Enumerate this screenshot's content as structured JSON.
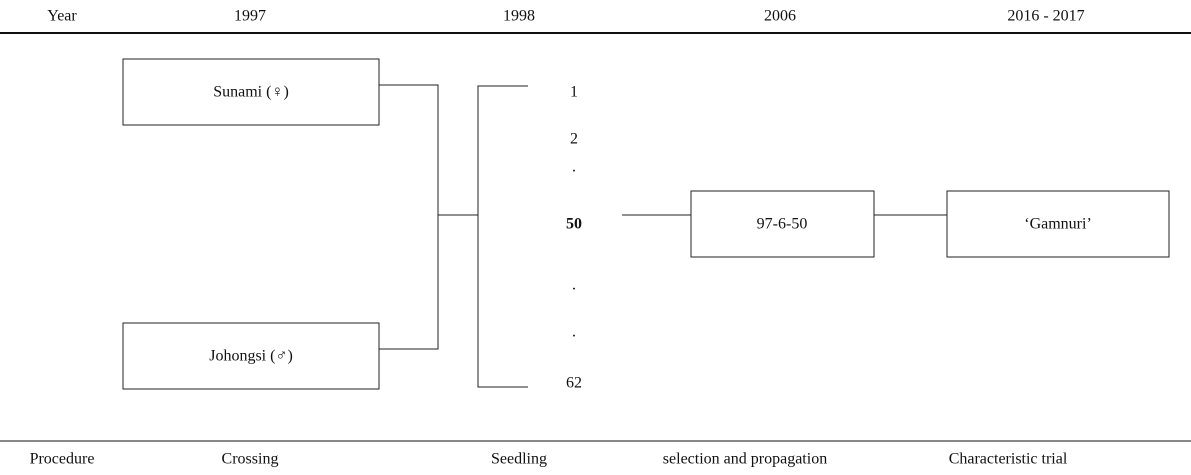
{
  "header": {
    "labels": [
      "Year",
      "1997",
      "1998",
      "2006",
      "2016 - 2017"
    ]
  },
  "nodes": [
    {
      "label": "Sunami (♀)"
    },
    {
      "label": "Johongsi (♂)"
    },
    {
      "label": "97-6-50"
    },
    {
      "label": "‘Gamnuri’"
    }
  ],
  "seedlings": [
    "1",
    "2",
    ".",
    "50",
    ".",
    ".",
    "62"
  ],
  "footer": {
    "labels": [
      "Procedure",
      "Crossing",
      "Seedling",
      "selection and propagation",
      "Characteristic trial"
    ]
  }
}
